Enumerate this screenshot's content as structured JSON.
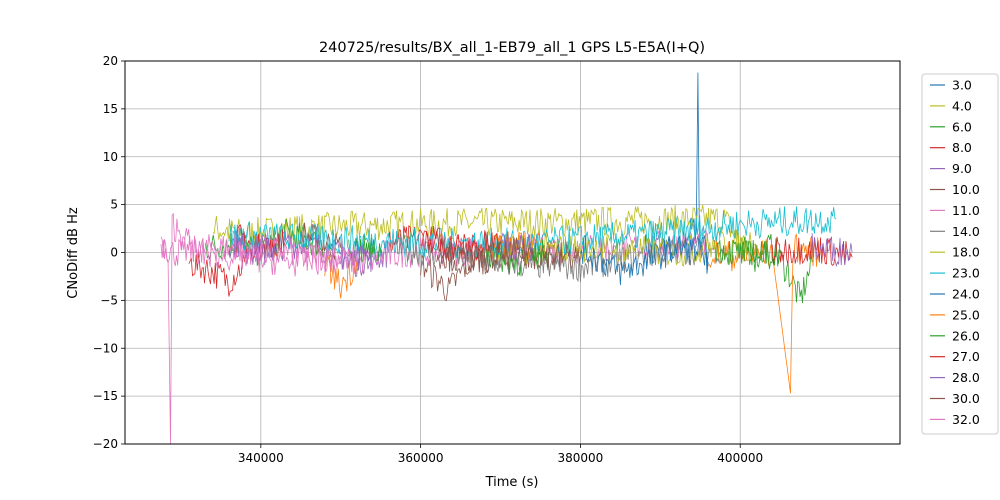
{
  "chart_data": {
    "type": "line",
    "title": "240725/results/BX_all_1-EB79_all_1 GPS L5-E5A(I+Q)",
    "xlabel": "Time (s)",
    "ylabel": "CNoDiff dB Hz",
    "xlim": [
      323000,
      420000
    ],
    "ylim": [
      -20,
      20
    ],
    "xticks": [
      340000,
      360000,
      380000,
      400000
    ],
    "yticks": [
      -20,
      -15,
      -10,
      -5,
      0,
      5,
      10,
      15,
      20
    ],
    "xtick_labels": [
      "340000",
      "360000",
      "380000",
      "400000"
    ],
    "ytick_labels": [
      "−20",
      "−15",
      "−10",
      "−5",
      "0",
      "5",
      "10",
      "15",
      "20"
    ],
    "grid": true,
    "legend_placement": "right-outside",
    "series": [
      {
        "name": "3.0",
        "color": "#1f77b4",
        "segments": [
          [
            [
              388000,
              0.5
            ],
            [
              390000,
              1.0
            ],
            [
              392000,
              -0.2
            ],
            [
              393500,
              2.0
            ],
            [
              394500,
              2.5
            ],
            [
              394700,
              18.8
            ],
            [
              394900,
              0.5
            ],
            [
              396000,
              -1.0
            ]
          ]
        ]
      },
      {
        "name": "4.0",
        "color": "#bcbd22",
        "segments": [
          [
            [
              334000,
              2.5
            ],
            [
              338000,
              2.0
            ],
            [
              345000,
              2.5
            ],
            [
              360000,
              3.0
            ],
            [
              380000,
              3.2
            ],
            [
              398000,
              3.5
            ],
            [
              400000,
              1.0
            ],
            [
              402000,
              0.5
            ]
          ]
        ]
      },
      {
        "name": "6.0",
        "color": "#2ca02c",
        "segments": [
          [
            [
              333000,
              0.5
            ],
            [
              337000,
              1.0
            ],
            [
              340000,
              0.0
            ],
            [
              343000,
              2.0
            ],
            [
              345000,
              1.5
            ],
            [
              349000,
              0.5
            ]
          ],
          [
            [
              400000,
              0.0
            ],
            [
              404000,
              0.5
            ],
            [
              406000,
              -2.0
            ],
            [
              407500,
              -5.0
            ],
            [
              409000,
              -1.0
            ]
          ]
        ]
      },
      {
        "name": "8.0",
        "color": "#d62728",
        "segments": [
          [
            [
              331000,
              -1.0
            ],
            [
              334000,
              -2.0
            ],
            [
              336000,
              -3.0
            ],
            [
              338000,
              -1.0
            ]
          ],
          [
            [
              356000,
              1.0
            ],
            [
              360000,
              1.5
            ],
            [
              364000,
              1.0
            ],
            [
              368000,
              0.0
            ]
          ]
        ]
      },
      {
        "name": "9.0",
        "color": "#9467bd",
        "segments": [
          [
            [
              336000,
              1.0
            ],
            [
              340000,
              0.5
            ],
            [
              346000,
              1.0
            ],
            [
              352000,
              -1.0
            ],
            [
              356000,
              0.0
            ]
          ]
        ]
      },
      {
        "name": "10.0",
        "color": "#8c564b",
        "segments": [
          [
            [
              345000,
              2.0
            ],
            [
              348000,
              1.0
            ],
            [
              350000,
              0.5
            ]
          ],
          [
            [
              360000,
              -1.0
            ],
            [
              363500,
              -4.0
            ],
            [
              366000,
              -1.0
            ],
            [
              372000,
              0.0
            ],
            [
              378000,
              -0.5
            ]
          ]
        ]
      },
      {
        "name": "11.0",
        "color": "#e377c2",
        "segments": [
          [
            [
              327500,
              1.0
            ],
            [
              329000,
              0.0
            ],
            [
              335000,
              0.5
            ],
            [
              345000,
              0.0
            ],
            [
              352000,
              -1.0
            ],
            [
              358000,
              0.0
            ],
            [
              370000,
              0.3
            ],
            [
              385000,
              0.5
            ],
            [
              396000,
              1.0
            ]
          ]
        ]
      },
      {
        "name": "14.0",
        "color": "#7f7f7f",
        "segments": [
          [
            [
              357000,
              0.5
            ],
            [
              370000,
              -1.0
            ],
            [
              380000,
              -1.5
            ],
            [
              390000,
              0.0
            ],
            [
              398000,
              0.5
            ]
          ]
        ]
      },
      {
        "name": "18.0",
        "color": "#bcbd22",
        "segments": [
          [
            [
              368000,
              0.8
            ],
            [
              375000,
              0.2
            ],
            [
              382000,
              0.6
            ],
            [
              392000,
              0.0
            ],
            [
              398000,
              1.0
            ],
            [
              402000,
              0.5
            ]
          ]
        ]
      },
      {
        "name": "23.0",
        "color": "#17becf",
        "segments": [
          [
            [
              336000,
              1.8
            ],
            [
              345000,
              1.5
            ],
            [
              360000,
              1.0
            ],
            [
              375000,
              1.0
            ],
            [
              390000,
              2.0
            ],
            [
              400000,
              3.0
            ],
            [
              412000,
              3.5
            ]
          ]
        ]
      },
      {
        "name": "24.0",
        "color": "#1f77b4",
        "segments": [
          [
            [
              380000,
              0.5
            ],
            [
              383000,
              -1.0
            ],
            [
              385000,
              -2.0
            ],
            [
              388000,
              -1.0
            ],
            [
              392000,
              0.5
            ],
            [
              396000,
              0.0
            ]
          ]
        ]
      },
      {
        "name": "25.0",
        "color": "#ff7f0e",
        "segments": [
          [
            [
              348000,
              -1.0
            ],
            [
              350000,
              -3.5
            ],
            [
              352000,
              -1.0
            ]
          ],
          [
            [
              369000,
              1.0
            ],
            [
              372000,
              0.5
            ],
            [
              375000,
              1.0
            ]
          ],
          [
            [
              396000,
              0.0
            ],
            [
              400000,
              -0.5
            ],
            [
              404000,
              0.0
            ],
            [
              406300,
              -14.7
            ],
            [
              406600,
              0.5
            ],
            [
              410000,
              0.0
            ]
          ]
        ]
      },
      {
        "name": "26.0",
        "color": "#2ca02c",
        "segments": [
          [
            [
              351000,
              0.5
            ],
            [
              355000,
              0.0
            ]
          ],
          [
            [
              368000,
              0.0
            ],
            [
              372000,
              -1.0
            ],
            [
              376000,
              0.0
            ]
          ],
          [
            [
              397000,
              0.5
            ],
            [
              402000,
              -0.5
            ],
            [
              405000,
              0.0
            ]
          ]
        ]
      },
      {
        "name": "27.0",
        "color": "#d62728",
        "segments": [
          [
            [
              337000,
              1.5
            ],
            [
              340000,
              0.5
            ],
            [
              343000,
              1.0
            ]
          ],
          [
            [
              360000,
              1.0
            ],
            [
              365000,
              0.5
            ],
            [
              370000,
              1.0
            ]
          ],
          [
            [
              404000,
              0.0
            ],
            [
              409000,
              0.5
            ],
            [
              412000,
              0.0
            ],
            [
              414000,
              -0.5
            ]
          ]
        ]
      },
      {
        "name": "28.0",
        "color": "#9467bd",
        "segments": [
          [
            [
              336500,
              1.0
            ],
            [
              339000,
              0.0
            ],
            [
              342000,
              0.5
            ]
          ],
          [
            [
              350000,
              0.0
            ],
            [
              354000,
              -0.5
            ]
          ],
          [
            [
              370000,
              1.0
            ],
            [
              374000,
              0.5
            ]
          ],
          [
            [
              409000,
              0.5
            ],
            [
              414000,
              0.0
            ]
          ]
        ]
      },
      {
        "name": "30.0",
        "color": "#8c564b",
        "segments": [
          [
            [
              362000,
              0.0
            ],
            [
              366000,
              -1.0
            ],
            [
              372000,
              0.0
            ],
            [
              380000,
              -0.5
            ]
          ]
        ]
      },
      {
        "name": "32.0",
        "color": "#e377c2",
        "segments": [
          [
            [
              327500,
              1.0
            ],
            [
              328400,
              -1.0
            ],
            [
              328700,
              -20.0
            ],
            [
              328900,
              3.0
            ],
            [
              332000,
              0.0
            ],
            [
              338000,
              -0.5
            ],
            [
              344000,
              -1.0
            ],
            [
              350000,
              -0.5
            ],
            [
              352000,
              -1.0
            ]
          ]
        ]
      }
    ]
  }
}
